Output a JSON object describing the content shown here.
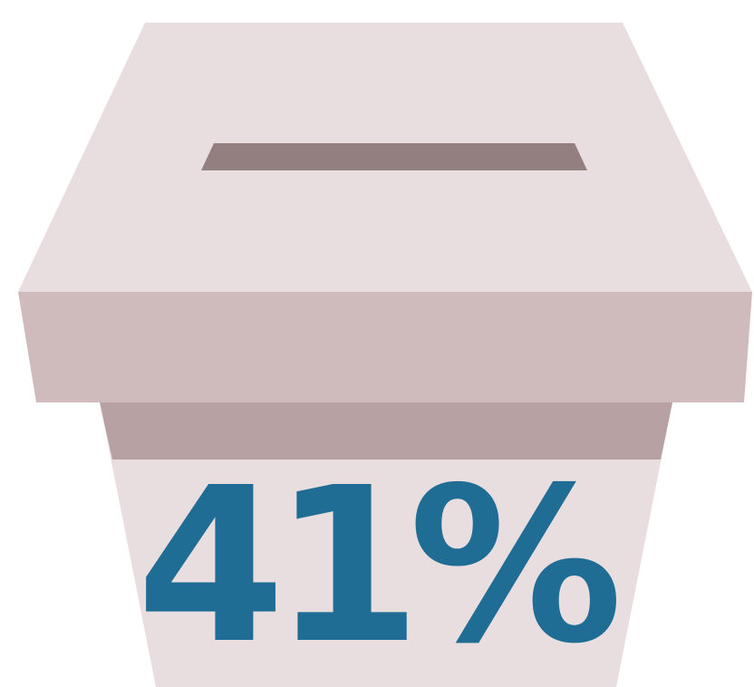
{
  "graphic": {
    "value_label": "41%",
    "icon": "ballot-box-icon"
  },
  "colors": {
    "lid_top": "#E9DEDF",
    "lid_front": "#CFBBBC",
    "slot": "#947F80",
    "box_band": "#B7A1A3",
    "box_body": "#E9DEDF",
    "value_text": "#1F6C94"
  }
}
